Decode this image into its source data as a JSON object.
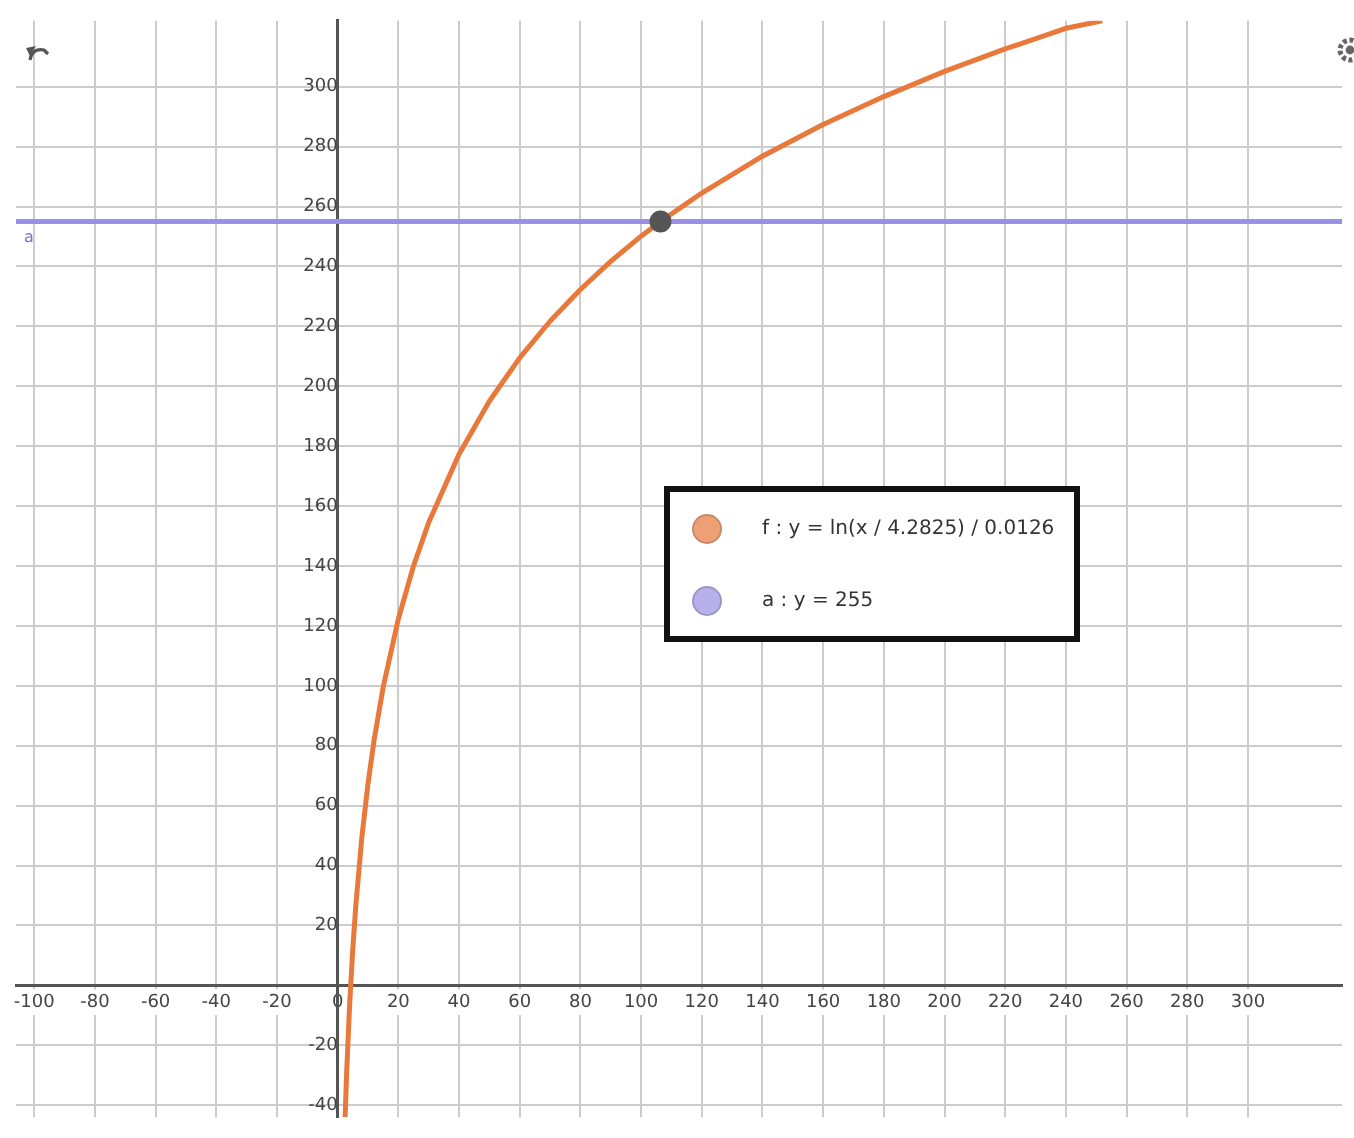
{
  "chart_data": {
    "type": "line",
    "xlim": [
      -106,
      331
    ],
    "ylim": [
      -44,
      322
    ],
    "xticks": [
      -100,
      -80,
      -60,
      -40,
      -20,
      0,
      20,
      40,
      60,
      80,
      100,
      120,
      140,
      160,
      180,
      200,
      220,
      240,
      260,
      280,
      300
    ],
    "yticks": [
      -40,
      -20,
      20,
      40,
      60,
      80,
      100,
      120,
      140,
      160,
      180,
      200,
      220,
      240,
      260,
      280,
      300
    ],
    "grid": true,
    "legend": "right",
    "annotations": [
      "a"
    ],
    "series": [
      {
        "name": "f : y = ln(x / 4.2825) / 0.0126",
        "color": "#e8793a",
        "x": [
          2.46,
          3,
          4,
          5,
          6,
          8,
          10,
          12,
          15,
          20,
          25,
          30,
          40,
          50,
          60,
          70,
          80,
          90,
          100,
          106,
          120,
          140,
          160,
          180,
          200,
          220,
          240,
          252
        ],
        "values": [
          -44,
          -28.3,
          -5.4,
          12.3,
          26.8,
          49.6,
          67.3,
          81.8,
          99.5,
          122.3,
          140,
          154.5,
          177.3,
          195,
          209.5,
          221.7,
          232.3,
          241.7,
          250.1,
          254.7,
          264.5,
          276.8,
          287.4,
          296.7,
          305.1,
          312.6,
          319.5,
          322
        ]
      },
      {
        "name": "a : y = 255",
        "color": "#9a90e6",
        "x": [
          -106,
          331
        ],
        "values": [
          255,
          255
        ]
      },
      {
        "type": "scatter",
        "color": "#555555",
        "marker": "circle",
        "x": [
          106.4
        ],
        "values": [
          255
        ]
      }
    ]
  }
}
